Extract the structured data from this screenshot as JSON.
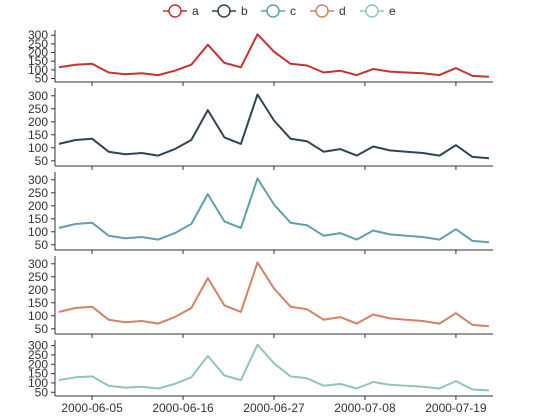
{
  "chart_data": {
    "type": "line",
    "layout": "stacked-panels",
    "shared_x_axis": true,
    "grid": false,
    "legend_position": "top-center",
    "x": [
      "2000-06-01",
      "2000-06-03",
      "2000-06-05",
      "2000-06-07",
      "2000-06-09",
      "2000-06-11",
      "2000-06-13",
      "2000-06-15",
      "2000-06-17",
      "2000-06-19",
      "2000-06-21",
      "2000-06-23",
      "2000-06-25",
      "2000-06-27",
      "2000-06-29",
      "2000-07-01",
      "2000-07-03",
      "2000-07-05",
      "2000-07-07",
      "2000-07-09",
      "2000-07-11",
      "2000-07-13",
      "2000-07-15",
      "2000-07-17",
      "2000-07-19",
      "2000-07-21",
      "2000-07-23"
    ],
    "x_tick_labels": [
      "2000-06-05",
      "2000-06-16",
      "2000-06-27",
      "2000-07-08",
      "2000-07-19"
    ],
    "y_ticks": [
      50,
      100,
      150,
      200,
      250,
      300
    ],
    "ylim": [
      30,
      330
    ],
    "series": [
      {
        "name": "a",
        "color": "#c23531"
      },
      {
        "name": "b",
        "color": "#2f4554"
      },
      {
        "name": "c",
        "color": "#61a0a8"
      },
      {
        "name": "d",
        "color": "#d48265"
      },
      {
        "name": "e",
        "color": "#91c7ae"
      }
    ],
    "values_by_panel": [
      {
        "series": "a",
        "values": [
          115,
          130,
          135,
          85,
          75,
          80,
          70,
          95,
          130,
          245,
          140,
          115,
          305,
          205,
          135,
          125,
          85,
          95,
          70,
          105,
          90,
          85,
          80,
          70,
          110,
          65,
          60
        ]
      },
      {
        "series": "b",
        "values": [
          115,
          130,
          135,
          85,
          75,
          80,
          70,
          95,
          130,
          245,
          140,
          115,
          305,
          205,
          135,
          125,
          85,
          95,
          70,
          105,
          90,
          85,
          80,
          70,
          110,
          65,
          60
        ]
      },
      {
        "series": "c",
        "values": [
          115,
          130,
          135,
          85,
          75,
          80,
          70,
          95,
          130,
          245,
          140,
          115,
          305,
          205,
          135,
          125,
          85,
          95,
          70,
          105,
          90,
          85,
          80,
          70,
          110,
          65,
          60
        ]
      },
      {
        "series": "d",
        "values": [
          115,
          130,
          135,
          85,
          75,
          80,
          70,
          95,
          130,
          245,
          140,
          115,
          305,
          205,
          135,
          125,
          85,
          95,
          70,
          105,
          90,
          85,
          80,
          70,
          110,
          65,
          60
        ]
      },
      {
        "series": "e",
        "values": [
          115,
          130,
          135,
          85,
          75,
          80,
          70,
          95,
          130,
          245,
          140,
          115,
          305,
          205,
          135,
          125,
          85,
          95,
          70,
          105,
          90,
          85,
          80,
          70,
          110,
          65,
          60
        ]
      }
    ]
  }
}
